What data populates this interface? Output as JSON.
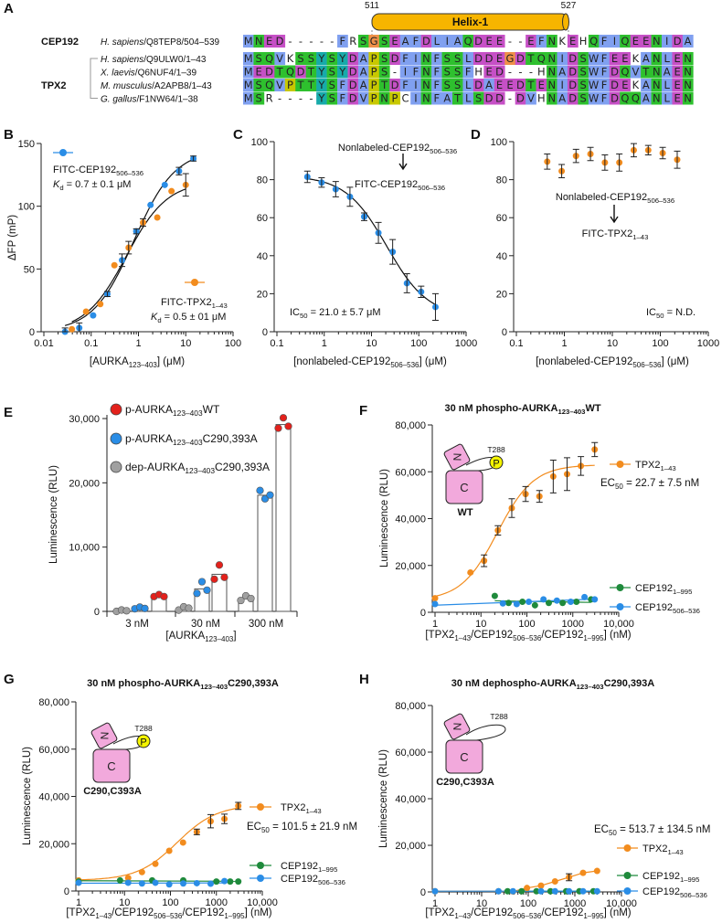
{
  "panel_labels": {
    "A": "A",
    "B": "B",
    "C": "C",
    "D": "D",
    "E": "E",
    "F": "F",
    "G": "G",
    "H": "H"
  },
  "alignment": {
    "helix": {
      "label": "Helix-1",
      "start": "511",
      "end": "527",
      "color": "#f7b500"
    },
    "groups": [
      {
        "name": "CEP192"
      },
      {
        "name": "TPX2"
      }
    ],
    "rows": [
      {
        "group": "CEP192",
        "species": "*H. sapiens*/Q8TEP8/504–539",
        "seq": "MNED-----FRSGSEAFDLIAQDEE--EFNKEHQFIQEENIDA"
      },
      {
        "group": "TPX2",
        "species": "*H. sapiens*/Q9ULW0/1–43",
        "seq": "MSQVKSSYSYDAPSDFINFSSLDDEGDTQNIDSWFEEKANLEN"
      },
      {
        "group": "TPX2",
        "species": "*X. laevis*/Q6NUF4/1–39",
        "seq": "MEDTQDTYSYDAPS-IFNFSSFHED---HNADSWFDQVTNAEN"
      },
      {
        "group": "TPX2",
        "species": "*M. musculus*/A2APB8/1–43",
        "seq": "MSQVPTTYSFDAPTDFINFSSLDAEEDTENIDSWFDEKANLEN"
      },
      {
        "group": "TPX2",
        "species": "*G. gallus*/F1NW64/1–38",
        "seq": "MSR----YSFDVPNPCINFATLSDD-DVHNADSWFDQQANLEN"
      }
    ],
    "residue_colors": {
      "hydrophobic": "#80a0f0",
      "polar": "#2ec02e",
      "acidic": "#c650c6",
      "glycine": "#f09048",
      "proline": "#c8c800",
      "aromatic": "#17aaaa"
    }
  },
  "colors": {
    "blue": "#2a8de6",
    "orange": "#f28c1e",
    "green": "#1f8a3c",
    "red": "#e3211c",
    "grey": "#a0a0a0",
    "kinase": "#f2a9dc",
    "phospho": "#f4f400"
  },
  "schematic": {
    "n_lobe": "N",
    "c_lobe": "C",
    "phospho": "P",
    "site": "T288",
    "labels": {
      "F": "WT",
      "G": "C290,C393A",
      "H": "C290,C393A"
    }
  },
  "chart_data": [
    {
      "panel": "B",
      "type": "scatter",
      "xscale": "log",
      "xlim": [
        0.01,
        100
      ],
      "ylim": [
        0,
        150
      ],
      "xtick_labels": [
        "0.01",
        "0.1",
        "1",
        "10",
        "100"
      ],
      "yticks": [
        0,
        50,
        100,
        150
      ],
      "ytick_labels": [
        "0",
        "50",
        "100",
        "150"
      ],
      "xlabel": "[AURKA_{123–403}]  (μM)",
      "ylabel": "ΔFP (mP)",
      "series": [
        {
          "name": "FITC-CEP192_{506–536}",
          "color": "#2a8de6",
          "kd": "*K*_{d} = 0.7 ± 0.1 μM",
          "points": [
            [
              0.028,
              0,
              3
            ],
            [
              0.056,
              3,
              4
            ],
            [
              0.11,
              13,
              0
            ],
            [
              0.22,
              30,
              2
            ],
            [
              0.45,
              57,
              5
            ],
            [
              0.9,
              80,
              2
            ],
            [
              1.8,
              101,
              0
            ],
            [
              3.6,
              117,
              0
            ],
            [
              7.2,
              128,
              3
            ],
            [
              14.5,
              138,
              2
            ]
          ]
        },
        {
          "name": "FITC-TPX2_{1–43}",
          "color": "#f28c1e",
          "kd": "*K*_{d} = 0.5 ± 01 μM",
          "points": [
            [
              0.039,
              2,
              0
            ],
            [
              0.078,
              16,
              0
            ],
            [
              0.156,
              22,
              0
            ],
            [
              0.31,
              53,
              0
            ],
            [
              0.62,
              67,
              5
            ],
            [
              1.25,
              87,
              3
            ],
            [
              2.5,
              91,
              0
            ],
            [
              5,
              112,
              0
            ],
            [
              10,
              117,
              9
            ]
          ]
        }
      ]
    },
    {
      "panel": "C",
      "type": "scatter",
      "xscale": "log",
      "xlim": [
        0.1,
        1000
      ],
      "ylim": [
        0,
        100
      ],
      "xtick_labels": [
        "0.1",
        "1",
        "10",
        "100",
        "1000"
      ],
      "yticks": [
        0,
        20,
        40,
        60,
        80,
        100
      ],
      "ytick_labels": [
        "0",
        "20",
        "40",
        "60",
        "80",
        "100"
      ],
      "xlabel": "[nonlabeled-CEP192_{506–536}]  (μM)",
      "annotations": {
        "competitor": "Nonlabeled-CEP192_{506–536}",
        "probe": "FITC-CEP192_{506–536}",
        "ic50": "IC_{50} = 21.0 ± 5.7 μM"
      },
      "series": [
        {
          "color": "#2a8de6",
          "points": [
            [
              0.44,
              81.5,
              3
            ],
            [
              0.88,
              78.5,
              2.5
            ],
            [
              1.75,
              75,
              4
            ],
            [
              3.5,
              71,
              5
            ],
            [
              7,
              60.5,
              2
            ],
            [
              14,
              52,
              5.5
            ],
            [
              28,
              42,
              6.5
            ],
            [
              56,
              25.5,
              5
            ],
            [
              112,
              21,
              3
            ],
            [
              225,
              13,
              7
            ]
          ]
        }
      ]
    },
    {
      "panel": "D",
      "type": "scatter",
      "xscale": "log",
      "xlim": [
        0.1,
        1000
      ],
      "ylim": [
        0,
        100
      ],
      "xtick_labels": [
        "0.1",
        "1",
        "10",
        "100",
        "1000"
      ],
      "yticks": [
        0,
        20,
        40,
        60,
        80,
        100
      ],
      "ytick_labels": [
        "0",
        "20",
        "40",
        "60",
        "80",
        "100"
      ],
      "xlabel": "[nonlabeled-CEP192_{506–536}]  (μM)",
      "annotations": {
        "competitor": "Nonlabeled-CEP192_{506–536}",
        "probe": "FITC-TPX2_{1–43}",
        "ic50": "IC_{50} = N.D."
      },
      "series": [
        {
          "color": "#f28c1e",
          "points": [
            [
              0.44,
              89.5,
              4
            ],
            [
              0.88,
              84.5,
              3.5
            ],
            [
              1.75,
              92.5,
              3.5
            ],
            [
              3.5,
              93.5,
              3.5
            ],
            [
              7,
              89,
              4
            ],
            [
              14,
              89,
              4.5
            ],
            [
              28,
              95.5,
              3.5
            ],
            [
              56,
              95.5,
              2.5
            ],
            [
              112,
              94,
              3
            ],
            [
              225,
              90.5,
              4.5
            ]
          ]
        }
      ]
    },
    {
      "panel": "E",
      "type": "bar",
      "ylim": [
        0,
        30000
      ],
      "categories": [
        "3 nM",
        "30 nM",
        "300 nM"
      ],
      "yticks": [
        0,
        10000,
        20000,
        30000
      ],
      "ytick_labels": [
        "0",
        "10,000",
        "20,000",
        "30,000"
      ],
      "xlabel": "[AURKA_{123–403}]",
      "ylabel": "Luminescence (RLU)",
      "series": [
        {
          "name": "dep-AURKA_{123–403}C290,393A",
          "color": "#a0a0a0",
          "replicates": [
            [
              0,
              0,
              100
            ],
            [
              200,
              500,
              500
            ],
            [
              1700,
              2200,
              2000
            ]
          ]
        },
        {
          "name": "p-AURKA_{123–403}C290,393A",
          "color": "#2a8de6",
          "replicates": [
            [
              400,
              450,
              450
            ],
            [
              2800,
              4400,
              3300
            ],
            [
              18800,
              17300,
              18100
            ]
          ]
        },
        {
          "name": "p-AURKA_{123–403}WT",
          "color": "#e3211c",
          "replicates": [
            [
              2300,
              2400,
              2300
            ],
            [
              5000,
              7000,
              5300
            ],
            [
              28500,
              29900,
              28800
            ]
          ]
        }
      ]
    },
    {
      "panel": "F",
      "type": "scatter",
      "title": "30 nM phospho-AURKA_{123–403}WT",
      "xscale": "log",
      "xlim": [
        1,
        10000
      ],
      "ylim": [
        0,
        80000
      ],
      "xtick_labels": [
        "1",
        "10",
        "100",
        "1000",
        "10,000"
      ],
      "yticks": [
        0,
        20000,
        40000,
        60000,
        80000
      ],
      "ytick_labels": [
        "0",
        "20,000",
        "40,000",
        "60,000",
        "80,000"
      ],
      "xlabel": "[TPX2_{1–43}/CEP192_{506–536}/CEP192_{1–995}] (nM)",
      "ylabel": "Luminescence (RLU)",
      "ec50": "EC_{50} = 22.7 ± 7.5 nM",
      "series": [
        {
          "name": "TPX2_{1–43}",
          "color": "#f28c1e",
          "points": [
            [
              1,
              6000,
              0
            ],
            [
              5.9,
              17000,
              0
            ],
            [
              11.7,
              22000,
              2500
            ],
            [
              23.4,
              35000,
              2000
            ],
            [
              46.9,
              44500,
              4000
            ],
            [
              93.8,
              50500,
              3200
            ],
            [
              187.5,
              49500,
              2500
            ],
            [
              375,
              58000,
              7000
            ],
            [
              750,
              59000,
              7000
            ],
            [
              1500,
              62500,
              4000
            ],
            [
              3000,
              69500,
              3000
            ]
          ]
        },
        {
          "name": "CEP192_{1–995}",
          "color": "#1f8a3c",
          "points": [
            [
              20,
              7000,
              0
            ],
            [
              40,
              4000,
              0
            ],
            [
              80,
              4500,
              0
            ],
            [
              150,
              3000,
              0
            ],
            [
              300,
              4000,
              0
            ],
            [
              600,
              4000,
              0
            ],
            [
              1200,
              4500,
              0
            ],
            [
              2500,
              5500,
              0
            ]
          ]
        },
        {
          "name": "CEP192_{506–536}",
          "color": "#2a8de6",
          "points": [
            [
              1,
              3500,
              0
            ],
            [
              30,
              3800,
              0
            ],
            [
              60,
              3500,
              0
            ],
            [
              110,
              4500,
              0
            ],
            [
              230,
              5500,
              0
            ],
            [
              450,
              5000,
              0
            ],
            [
              900,
              4500,
              0
            ],
            [
              1800,
              6500,
              0
            ],
            [
              3000,
              5500,
              0
            ]
          ]
        }
      ]
    },
    {
      "panel": "G",
      "type": "scatter",
      "title": "30 nM phospho-AURKA_{123–403}C290,393A",
      "xscale": "log",
      "xlim": [
        1,
        10000
      ],
      "ylim": [
        0,
        80000
      ],
      "xtick_labels": [
        "1",
        "10",
        "100",
        "1000",
        "10,000"
      ],
      "yticks": [
        0,
        20000,
        40000,
        60000,
        80000
      ],
      "ytick_labels": [
        "0",
        "20,000",
        "40,000",
        "60,000",
        "80,000"
      ],
      "xlabel": "[TPX2_{1–43}/CEP192_{506–536}/CEP192_{1–995}] (nM)",
      "ylabel": "Luminescence (RLU)",
      "ec50": "EC_{50} = 101.5 ± 21.9 nM",
      "series": [
        {
          "name": "TPX2_{1–43}",
          "color": "#f28c1e",
          "points": [
            [
              1,
              4500,
              0
            ],
            [
              12,
              5500,
              0
            ],
            [
              24,
              8000,
              0
            ],
            [
              47,
              11500,
              0
            ],
            [
              94,
              17000,
              0
            ],
            [
              188,
              20500,
              0
            ],
            [
              375,
              25000,
              1200
            ],
            [
              750,
              29500,
              2800
            ],
            [
              1500,
              30500,
              2000
            ],
            [
              3000,
              36000,
              1500
            ]
          ]
        },
        {
          "name": "CEP192_{1–995}",
          "color": "#1f8a3c",
          "points": [
            [
              1,
              4000,
              0
            ],
            [
              8,
              4500,
              0
            ],
            [
              40,
              4500,
              0
            ],
            [
              190,
              4500,
              0
            ],
            [
              1000,
              4000,
              0
            ],
            [
              2000,
              4000,
              0
            ],
            [
              3000,
              4000,
              0
            ]
          ]
        },
        {
          "name": "CEP192_{506–536}",
          "color": "#2a8de6",
          "points": [
            [
              1,
              3500,
              0
            ],
            [
              12,
              3500,
              0
            ],
            [
              24,
              3200,
              0
            ],
            [
              47,
              3500,
              0
            ],
            [
              94,
              2800,
              0
            ],
            [
              190,
              3200,
              0
            ],
            [
              375,
              3300,
              0
            ],
            [
              750,
              3100,
              0
            ],
            [
              1500,
              4200,
              0
            ]
          ]
        }
      ]
    },
    {
      "panel": "H",
      "type": "scatter",
      "title": "30 nM dephospho-AURKA_{123–403}C290,393A",
      "xscale": "log",
      "xlim": [
        1,
        10000
      ],
      "ylim": [
        0,
        80000
      ],
      "xtick_labels": [
        "1",
        "10",
        "100",
        "1000",
        "10,000"
      ],
      "yticks": [
        0,
        20000,
        40000,
        60000,
        80000
      ],
      "ytick_labels": [
        "0",
        "20,000",
        "40,000",
        "60,000",
        "80,000"
      ],
      "xlabel": "[TPX2_{1–43}/CEP192_{506–536}/CEP192_{1–995}] (nM)",
      "ylabel": "Luminescence (RLU)",
      "ec50": "EC_{50} = 513.7 ± 134.5 nM",
      "series": [
        {
          "name": "TPX2_{1–43}",
          "color": "#f28c1e",
          "points": [
            [
              1,
              300,
              0
            ],
            [
              23,
              300,
              0
            ],
            [
              47,
              200,
              0
            ],
            [
              94,
              1700,
              0
            ],
            [
              188,
              2700,
              0
            ],
            [
              375,
              4500,
              0
            ],
            [
              750,
              6300,
              1500
            ],
            [
              1500,
              8200,
              0
            ],
            [
              3000,
              9000,
              0
            ]
          ]
        },
        {
          "name": "CEP192_{1–995}",
          "color": "#1f8a3c",
          "points": [
            [
              36,
              300,
              0
            ],
            [
              72,
              300,
              0
            ],
            [
              150,
              300,
              0
            ],
            [
              300,
              300,
              0
            ],
            [
              650,
              300,
              0
            ],
            [
              1250,
              300,
              0
            ],
            [
              2500,
              300,
              0
            ]
          ]
        },
        {
          "name": "CEP192_{506–536}",
          "color": "#2a8de6",
          "points": [
            [
              1,
              300,
              0
            ],
            [
              23,
              300,
              0
            ],
            [
              47,
              300,
              0
            ],
            [
              188,
              300,
              0
            ],
            [
              375,
              300,
              0
            ],
            [
              750,
              300,
              0
            ],
            [
              1500,
              300,
              0
            ],
            [
              3000,
              300,
              0
            ]
          ]
        }
      ]
    }
  ]
}
